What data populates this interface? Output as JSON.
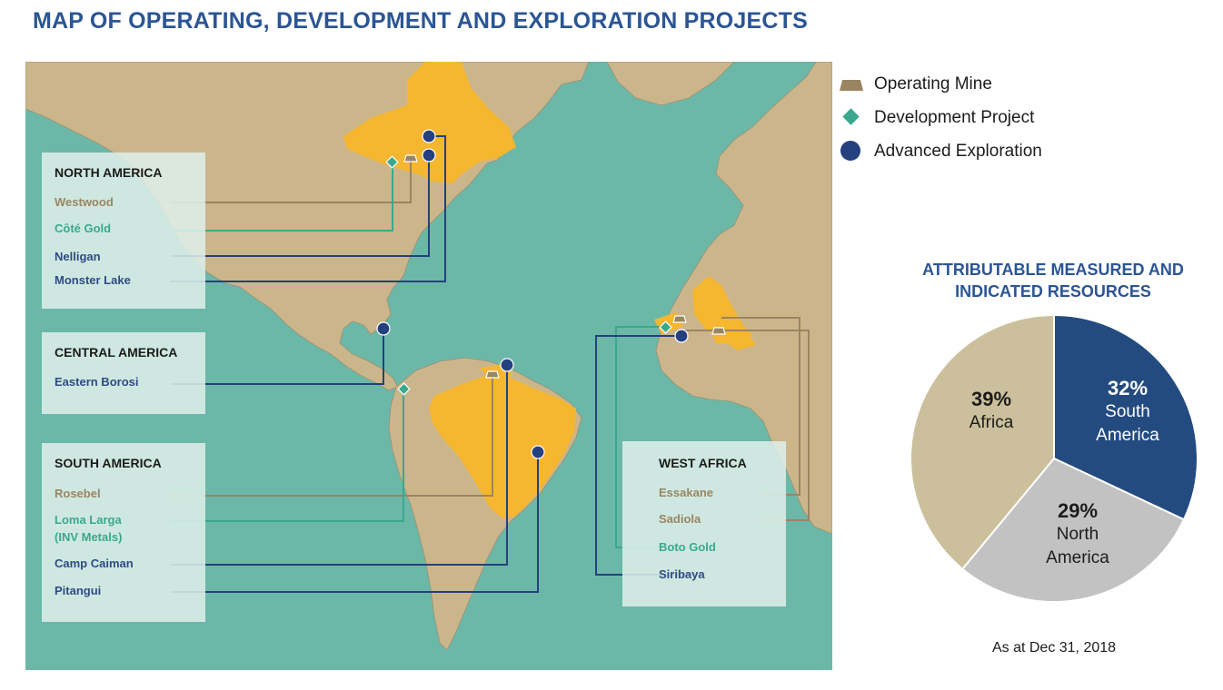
{
  "title": "MAP OF OPERATING, DEVELOPMENT AND EXPLORATION PROJECTS",
  "legend": {
    "operating_mine": "Operating Mine",
    "development_project": "Development Project",
    "advanced_exploration": "Advanced Exploration"
  },
  "colors": {
    "ocean": "#6bb8a8",
    "land": "#cbb68c",
    "highlight": "#f5b630",
    "mine": "#9a8562",
    "development": "#3aa88d",
    "exploration": "#24407e",
    "pie_africa": "#cbc09b",
    "pie_south_america": "#234b80",
    "pie_north_america": "#c2c2c2",
    "title": "#2b5595"
  },
  "regions": {
    "north_america": {
      "heading": "NORTH AMERICA",
      "projects": [
        {
          "name": "Westwood",
          "type": "operating_mine"
        },
        {
          "name": "Côté Gold",
          "type": "development_project"
        },
        {
          "name": "Nelligan",
          "type": "advanced_exploration"
        },
        {
          "name": "Monster Lake",
          "type": "advanced_exploration"
        }
      ]
    },
    "central_america": {
      "heading": "CENTRAL AMERICA",
      "projects": [
        {
          "name": "Eastern Borosi",
          "type": "advanced_exploration"
        }
      ]
    },
    "south_america": {
      "heading": "SOUTH AMERICA",
      "projects": [
        {
          "name": "Rosebel",
          "type": "operating_mine"
        },
        {
          "name": "Loma Larga",
          "name2": "(INV Metals)",
          "type": "development_project"
        },
        {
          "name": "Camp Caiman",
          "type": "advanced_exploration"
        },
        {
          "name": "Pitangui",
          "type": "advanced_exploration"
        }
      ]
    },
    "west_africa": {
      "heading": "WEST AFRICA",
      "projects": [
        {
          "name": "Essakane",
          "type": "operating_mine"
        },
        {
          "name": "Sadiola",
          "type": "operating_mine"
        },
        {
          "name": "Boto Gold",
          "type": "development_project"
        },
        {
          "name": "Siribaya",
          "type": "advanced_exploration"
        }
      ]
    }
  },
  "pie": {
    "title_line1": "ATTRIBUTABLE MEASURED AND",
    "title_line2": "INDICATED RESOURCES",
    "slices": [
      {
        "pct_label": "32%",
        "name_line1": "South",
        "name_line2": "America",
        "value": 32
      },
      {
        "pct_label": "29%",
        "name_line1": "North",
        "name_line2": "America",
        "value": 29
      },
      {
        "pct_label": "39%",
        "name_line1": "Africa",
        "name_line2": "",
        "value": 39
      }
    ],
    "footnote": "As at Dec 31, 2018"
  }
}
